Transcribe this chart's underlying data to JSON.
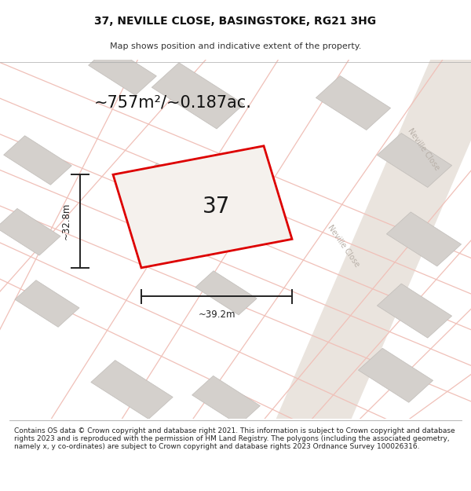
{
  "title": "37, NEVILLE CLOSE, BASINGSTOKE, RG21 3HG",
  "subtitle": "Map shows position and indicative extent of the property.",
  "area_text": "~757m²/~0.187ac.",
  "label_37": "37",
  "dim_width": "~39.2m",
  "dim_height": "~32.8m",
  "street_label1": "Neville Close",
  "street_label2": "Neville Close",
  "footer": "Contains OS data © Crown copyright and database right 2021. This information is subject to Crown copyright and database rights 2023 and is reproduced with the permission of HM Land Registry. The polygons (including the associated geometry, namely x, y co-ordinates) are subject to Crown copyright and database rights 2023 Ordnance Survey 100026316.",
  "bg_color": "#f2eeea",
  "plot_outline_color": "#dd0000",
  "plot_fill_color": "#f5f1ed",
  "building_fill": "#d4d0cc",
  "building_edge": "#c0bcb8",
  "road_line_color": "#f0c0b8",
  "road_band_color": "#eae4de",
  "dim_color": "#222222",
  "street_text_color": "#b8b0a8",
  "title_fontsize": 10,
  "subtitle_fontsize": 8,
  "footer_fontsize": 6.5,
  "area_fontsize": 15,
  "label37_fontsize": 20,
  "dim_fontsize": 8.5
}
